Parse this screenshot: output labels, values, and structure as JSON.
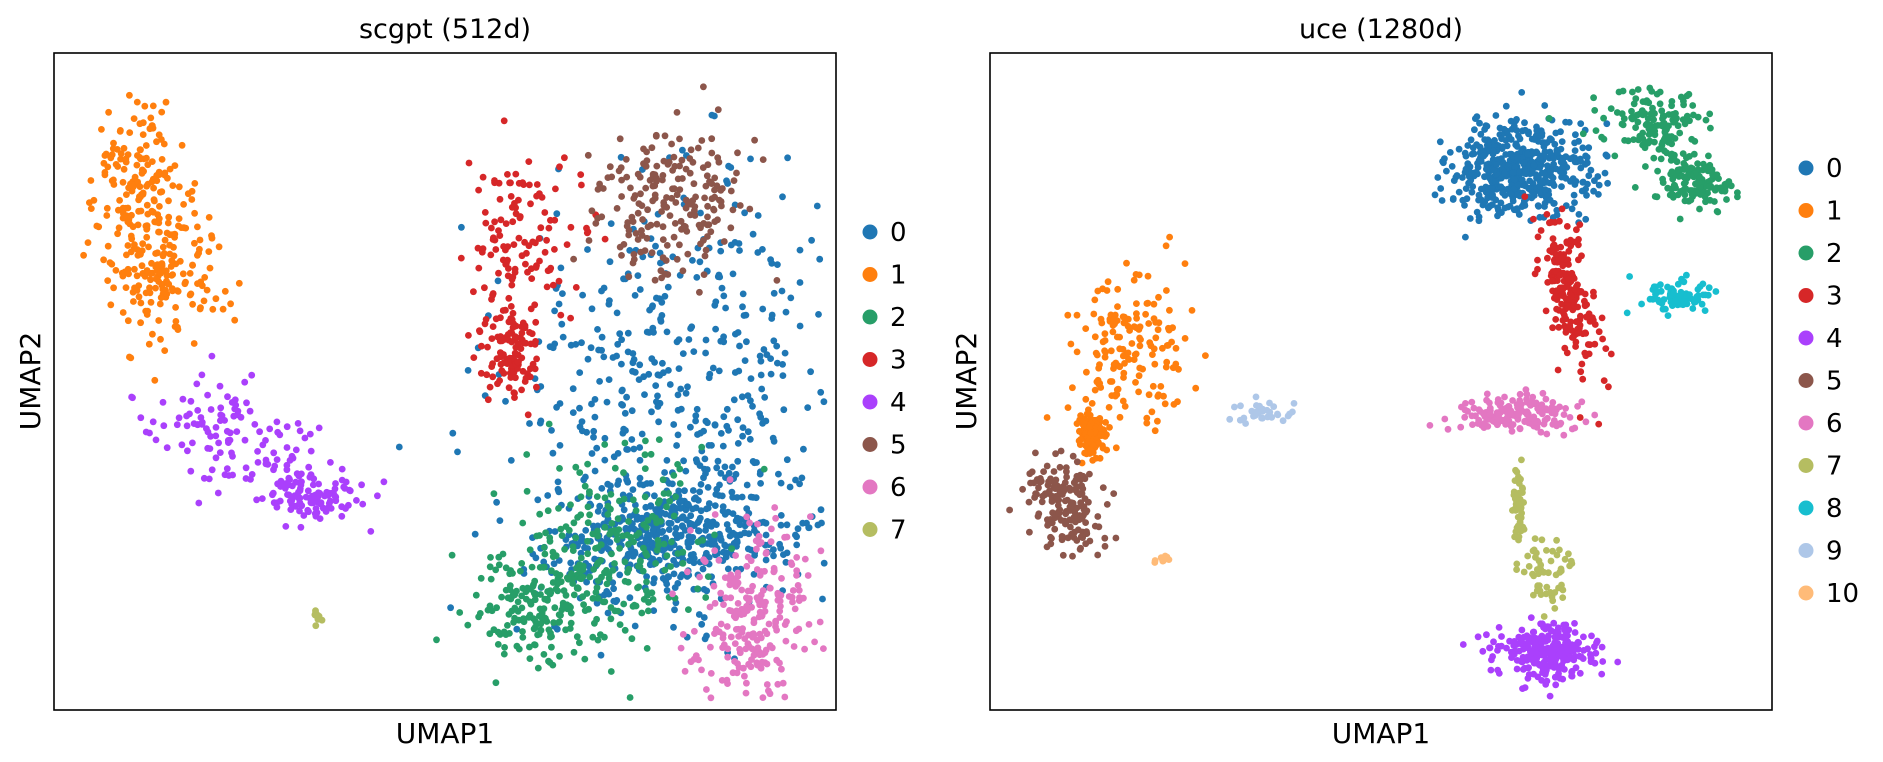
{
  "chart_data": [
    {
      "type": "scatter",
      "title": "scgpt (512d)",
      "xlabel": "UMAP1",
      "ylabel": "UMAP2",
      "xlim": [
        0,
        100
      ],
      "ylim": [
        0,
        100
      ],
      "grid": false,
      "legend_placement": "right",
      "legend": [
        "0",
        "1",
        "2",
        "3",
        "4",
        "5",
        "6",
        "7"
      ],
      "clusters": [
        {
          "name": "0",
          "color": "#1f77b4",
          "n": 900,
          "blobs": [
            [
              80,
              50,
              15,
              21,
              0.06
            ],
            [
              79,
              26,
              10,
              6,
              0.1
            ]
          ]
        },
        {
          "name": "1",
          "color": "#ff7f0e",
          "n": 320,
          "blobs": [
            [
              11,
              80,
              4,
              9,
              0.18
            ],
            [
              14,
              66,
              5,
              7,
              0.1
            ]
          ]
        },
        {
          "name": "2",
          "color": "#279e68",
          "n": 380,
          "blobs": [
            [
              72,
              26,
              8,
              10,
              0.0
            ],
            [
              63,
              16,
              6,
              6,
              0.0
            ]
          ]
        },
        {
          "name": "3",
          "color": "#d62728",
          "n": 230,
          "blobs": [
            [
              60,
              72,
              5,
              8,
              -0.1
            ],
            [
              58,
              55,
              2.5,
              5,
              0.0
            ]
          ]
        },
        {
          "name": "4",
          "color": "#aa40fc",
          "n": 230,
          "blobs": [
            [
              22,
              42,
              8,
              5,
              -0.35
            ],
            [
              33,
              33,
              4,
              3,
              -0.2
            ]
          ]
        },
        {
          "name": "5",
          "color": "#8c564b",
          "n": 200,
          "blobs": [
            [
              79,
              77,
              6,
              8,
              0.0
            ]
          ]
        },
        {
          "name": "6",
          "color": "#e377c2",
          "n": 230,
          "blobs": [
            [
              89,
              14,
              5,
              9,
              0.0
            ]
          ]
        },
        {
          "name": "7",
          "color": "#b5bd61",
          "n": 10,
          "blobs": [
            [
              34,
              14,
              0.6,
              1.2,
              0.0
            ]
          ]
        }
      ]
    },
    {
      "type": "scatter",
      "title": "uce (1280d)",
      "xlabel": "UMAP1",
      "ylabel": "UMAP2",
      "xlim": [
        0,
        100
      ],
      "ylim": [
        0,
        100
      ],
      "grid": false,
      "legend_placement": "right",
      "legend": [
        "0",
        "1",
        "2",
        "3",
        "4",
        "5",
        "6",
        "7",
        "8",
        "9",
        "10"
      ],
      "clusters": [
        {
          "name": "0",
          "color": "#1f77b4",
          "n": 500,
          "blobs": [
            [
              68,
              82,
              6,
              5,
              0.0
            ]
          ]
        },
        {
          "name": "1",
          "color": "#ff7f0e",
          "n": 330,
          "blobs": [
            [
              18,
              55,
              5,
              7,
              0.0
            ],
            [
              13,
              42,
              1,
              2,
              0.0
            ]
          ]
        },
        {
          "name": "2",
          "color": "#279e68",
          "n": 280,
          "blobs": [
            [
              85,
              89,
              4.5,
              3.5,
              0.0
            ],
            [
              90,
              80,
              3,
              2.5,
              0.0
            ]
          ]
        },
        {
          "name": "3",
          "color": "#d62728",
          "n": 200,
          "blobs": [
            [
              74,
              64,
              2.5,
              8,
              -0.55
            ]
          ]
        },
        {
          "name": "4",
          "color": "#aa40fc",
          "n": 260,
          "blobs": [
            [
              71,
              9,
              4.5,
              3,
              0.0
            ]
          ]
        },
        {
          "name": "5",
          "color": "#8c564b",
          "n": 170,
          "blobs": [
            [
              10,
              31,
              3.5,
              5,
              -0.3
            ]
          ]
        },
        {
          "name": "6",
          "color": "#e377c2",
          "n": 170,
          "blobs": [
            [
              67,
              45,
              5,
              2,
              0.0
            ]
          ]
        },
        {
          "name": "7",
          "color": "#b5bd61",
          "n": 110,
          "blobs": [
            [
              71,
              21,
              2.5,
              3.5,
              0.0
            ],
            [
              67.5,
              31,
              0.5,
              4,
              0.0
            ]
          ]
        },
        {
          "name": "8",
          "color": "#17becf",
          "n": 80,
          "blobs": [
            [
              88,
              63,
              3,
              1.6,
              0.0
            ]
          ]
        },
        {
          "name": "9",
          "color": "#aec7e8",
          "n": 35,
          "blobs": [
            [
              35,
              45,
              2.5,
              1.3,
              0.0
            ]
          ]
        },
        {
          "name": "10",
          "color": "#ffbb78",
          "n": 10,
          "blobs": [
            [
              22,
              23,
              1,
              0.5,
              0.0
            ]
          ]
        }
      ]
    }
  ]
}
